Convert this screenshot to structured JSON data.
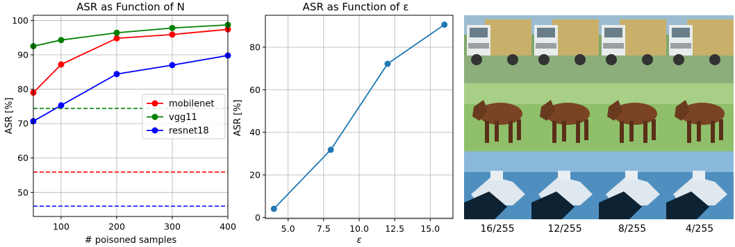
{
  "chart_data": [
    {
      "type": "line",
      "title": "ASR as Function of N",
      "xlabel": "# poisoned samples",
      "ylabel": "ASR [%]",
      "xlim": [
        50,
        400
      ],
      "ylim": [
        43,
        101.5
      ],
      "xticks": [
        100,
        200,
        300,
        400
      ],
      "yticks": [
        50,
        60,
        70,
        80,
        90,
        100
      ],
      "grid": true,
      "legend_position": "center-right",
      "series": [
        {
          "name": "mobilenet",
          "color": "#ff0000",
          "x": [
            50,
            100,
            200,
            300,
            400
          ],
          "y": [
            79,
            87.2,
            94.8,
            95.9,
            97.4
          ],
          "baseline": 55.9
        },
        {
          "name": "vgg11",
          "color": "#008000",
          "x": [
            50,
            100,
            200,
            300,
            400
          ],
          "y": [
            92.5,
            94.3,
            96.4,
            97.8,
            98.7
          ],
          "baseline": 74.4
        },
        {
          "name": "resnet18",
          "color": "#0000ff",
          "x": [
            50,
            100,
            200,
            300,
            400
          ],
          "y": [
            70.7,
            75.3,
            84.4,
            87,
            89.8
          ],
          "baseline": 46
        }
      ]
    },
    {
      "type": "line",
      "title": "ASR as Function of ε",
      "xlabel": "ε",
      "ylabel": "ASR [%]",
      "xlim": [
        3.4,
        16.6
      ],
      "ylim": [
        -0.5,
        95
      ],
      "xticks": [
        5.0,
        7.5,
        10.0,
        12.5,
        15.0
      ],
      "xtick_labels": [
        "5.0",
        "7.5",
        "10.0",
        "12.5",
        "15.0"
      ],
      "yticks": [
        0,
        20,
        40,
        60,
        80
      ],
      "grid": true,
      "series": [
        {
          "color": "#1f77b4",
          "x": [
            4,
            8,
            12,
            16
          ],
          "y": [
            4.1,
            31.8,
            72.2,
            90.6
          ]
        }
      ]
    }
  ],
  "image_grid": {
    "captions": [
      "16/255",
      "12/255",
      "8/255",
      "4/255"
    ],
    "rows": [
      "truck",
      "horse",
      "ship"
    ]
  }
}
